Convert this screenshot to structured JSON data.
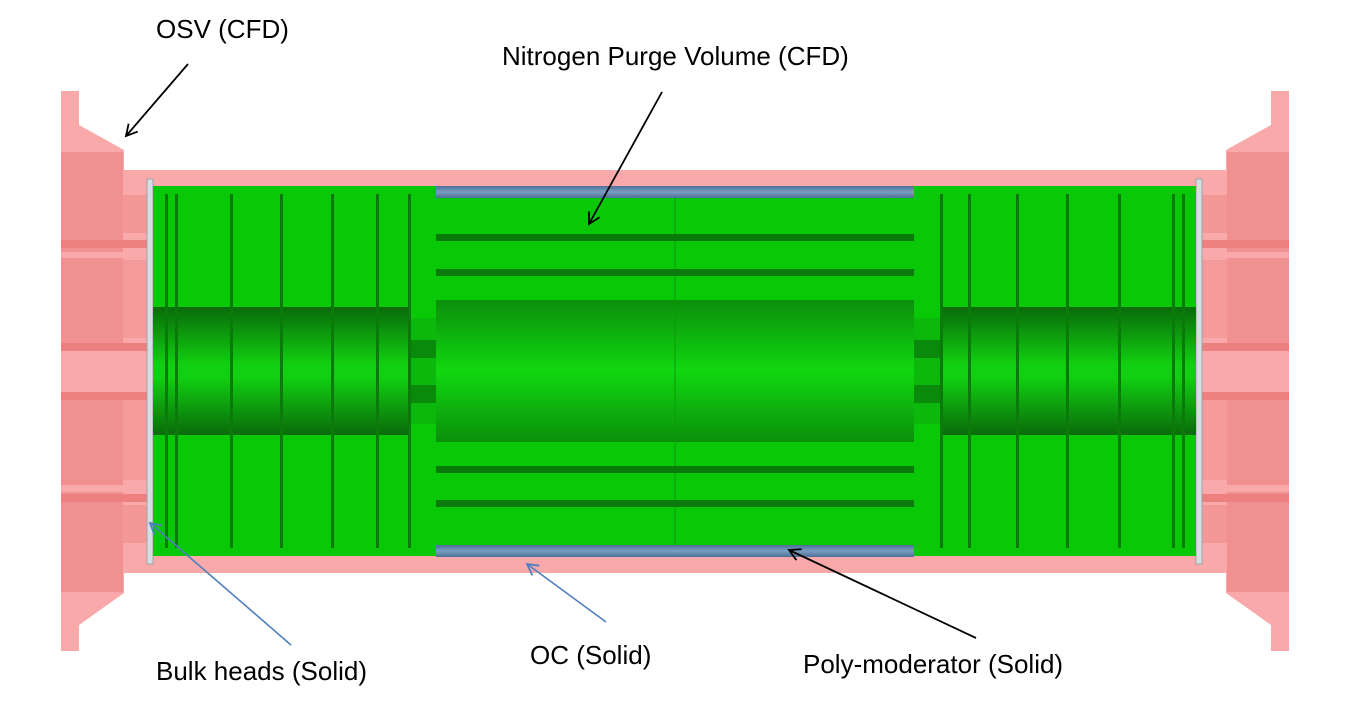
{
  "labels": {
    "osv": "OSV (CFD)",
    "nitrogen": "Nitrogen Purge Volume (CFD)",
    "bulkheads": "Bulk heads (Solid)",
    "oc": "OC (Solid)",
    "poly": "Poly-moderator (Solid)"
  },
  "colors": {
    "osv_pink": "#f9a9a9",
    "osv_dark_pink": "#f08c8c",
    "nitrogen_green": "#08c808",
    "green_dark": "#0a7a0a",
    "poly_blue": "#5f7fa0",
    "bulkhead_gray": "#d8dde2",
    "arrow_black": "#000000",
    "arrow_blue": "#4f7fbf"
  }
}
